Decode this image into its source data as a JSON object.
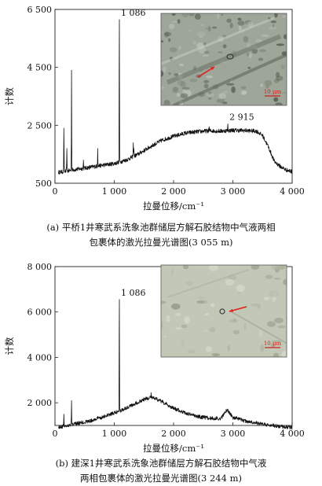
{
  "chart_data": [
    {
      "type": "line",
      "ylabel": "计数",
      "xlabel": "拉曼位移/cm⁻¹",
      "xlim": [
        0,
        4000
      ],
      "ylim": [
        500,
        6500
      ],
      "x_ticks": [
        0,
        1000,
        2000,
        3000,
        4000
      ],
      "x_tick_labels": [
        "0",
        "1 000",
        "2 000",
        "3 000",
        "4 000"
      ],
      "y_ticks": [
        500,
        2500,
        4500,
        6500
      ],
      "y_tick_labels": [
        "500",
        "2 500",
        "4 500",
        "6 500"
      ],
      "peak_annotations": [
        {
          "x": 1086,
          "label": "1 086"
        },
        {
          "x": 2915,
          "label": "2 915"
        }
      ],
      "baseline": [
        [
          60,
          880
        ],
        [
          150,
          900
        ],
        [
          300,
          960
        ],
        [
          500,
          1020
        ],
        [
          800,
          1120
        ],
        [
          1000,
          1180
        ],
        [
          1200,
          1300
        ],
        [
          1400,
          1500
        ],
        [
          1600,
          1750
        ],
        [
          1800,
          1980
        ],
        [
          2000,
          2120
        ],
        [
          2200,
          2230
        ],
        [
          2400,
          2280
        ],
        [
          2600,
          2310
        ],
        [
          2800,
          2300
        ],
        [
          3000,
          2330
        ],
        [
          3200,
          2320
        ],
        [
          3400,
          2300
        ],
        [
          3500,
          2150
        ],
        [
          3600,
          1750
        ],
        [
          3700,
          1250
        ],
        [
          3800,
          1080
        ],
        [
          3900,
          960
        ],
        [
          4000,
          900
        ]
      ],
      "peaks": [
        {
          "x": 150,
          "y": 2400
        },
        {
          "x": 200,
          "y": 1700
        },
        {
          "x": 280,
          "y": 4400
        },
        {
          "x": 480,
          "y": 1300
        },
        {
          "x": 720,
          "y": 1700
        },
        {
          "x": 1086,
          "y": 6150
        },
        {
          "x": 1320,
          "y": 1900
        },
        {
          "x": 1330,
          "y": 1700
        },
        {
          "x": 2600,
          "y": 2450
        },
        {
          "x": 2915,
          "y": 2550
        }
      ],
      "inset": {
        "scale_label": "10 μm"
      },
      "caption": [
        "(a) 平桥1井寒武系洗象池群储层方解石胶结物中气液两相",
        "包裹体的激光拉曼光谱图(3 055 m)"
      ]
    },
    {
      "type": "line",
      "ylabel": "计数",
      "xlabel": "拉曼位移/cm⁻¹",
      "xlim": [
        0,
        4000
      ],
      "ylim": [
        1000,
        8000
      ],
      "x_ticks": [
        0,
        1000,
        2000,
        3000,
        4000
      ],
      "x_tick_labels": [
        "0",
        "1 000",
        "2 000",
        "3 000",
        "4 000"
      ],
      "y_ticks": [
        2000,
        4000,
        6000,
        8000
      ],
      "y_tick_labels": [
        "2 000",
        "4 000",
        "6 000",
        "8 000"
      ],
      "peak_annotations": [
        {
          "x": 1086,
          "label": "1 086"
        }
      ],
      "baseline": [
        [
          60,
          920
        ],
        [
          300,
          1050
        ],
        [
          600,
          1200
        ],
        [
          900,
          1450
        ],
        [
          1100,
          1650
        ],
        [
          1300,
          1900
        ],
        [
          1500,
          2150
        ],
        [
          1650,
          2250
        ],
        [
          1800,
          2050
        ],
        [
          2000,
          1750
        ],
        [
          2200,
          1550
        ],
        [
          2400,
          1400
        ],
        [
          2600,
          1320
        ],
        [
          2800,
          1300
        ],
        [
          2900,
          1700
        ],
        [
          3000,
          1350
        ],
        [
          3200,
          1200
        ],
        [
          3400,
          1100
        ],
        [
          3600,
          1020
        ],
        [
          3800,
          960
        ],
        [
          4000,
          900
        ]
      ],
      "peaks": [
        {
          "x": 150,
          "y": 1500
        },
        {
          "x": 280,
          "y": 2100
        },
        {
          "x": 720,
          "y": 1400
        },
        {
          "x": 1086,
          "y": 6550
        },
        {
          "x": 1620,
          "y": 2450
        }
      ],
      "inset": {
        "scale_label": "10 μm"
      },
      "caption": [
        "(b) 建深1井寒武系洗象池群储层方解石胶结物中气液",
        "两相包裹体的激光拉曼光谱图(3 244 m)"
      ]
    }
  ]
}
